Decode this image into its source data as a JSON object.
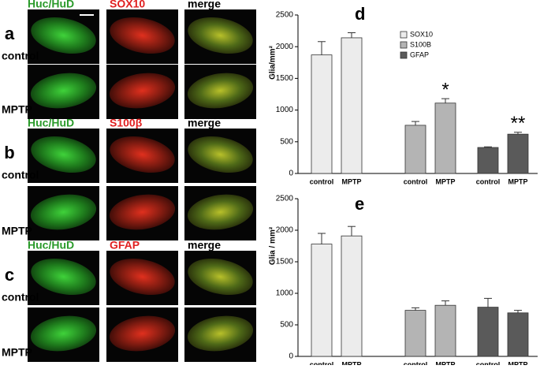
{
  "figure": {
    "rows": [
      {
        "label": "a",
        "headers": [
          "Huc/HuD",
          "SOX10",
          "merge"
        ],
        "conditions": [
          "control",
          "MPTP"
        ]
      },
      {
        "label": "b",
        "headers": [
          "Huc/HuD",
          "S100β",
          "merge"
        ],
        "conditions": [
          "control",
          "MPTP"
        ]
      },
      {
        "label": "c",
        "headers": [
          "Huc/HuD",
          "GFAP",
          "merge"
        ],
        "conditions": [
          "control",
          "MPTP"
        ]
      }
    ]
  },
  "chart_data": [
    {
      "type": "bar",
      "panel_label": "d",
      "ylabel": "Glia/mm²",
      "ylim": [
        0,
        2500
      ],
      "yticks": [
        0,
        500,
        1000,
        1500,
        2000,
        2500
      ],
      "legend": "top-center",
      "groups": [
        {
          "name": "SOX10",
          "color": "#ececec",
          "categories": [
            "control",
            "MPTP"
          ],
          "values": [
            1870,
            2140
          ],
          "errors": [
            210,
            80
          ]
        },
        {
          "name": "S100B",
          "color": "#b4b4b4",
          "categories": [
            "control",
            "MPTP"
          ],
          "values": [
            760,
            1110
          ],
          "errors": [
            60,
            70
          ],
          "significance": [
            null,
            "*"
          ]
        },
        {
          "name": "GFAP",
          "color": "#5a5a5a",
          "categories": [
            "control",
            "MPTP"
          ],
          "values": [
            410,
            620
          ],
          "errors": [
            10,
            30
          ],
          "significance": [
            null,
            "**"
          ]
        }
      ]
    },
    {
      "type": "bar",
      "panel_label": "e",
      "ylabel": "Glia / mm²",
      "ylim": [
        0,
        2500
      ],
      "yticks": [
        0,
        500,
        1000,
        1500,
        2000,
        2500
      ],
      "groups": [
        {
          "color": "#ececec",
          "categories": [
            "control",
            "MPTP"
          ],
          "values": [
            1780,
            1910
          ],
          "errors": [
            170,
            150
          ]
        },
        {
          "color": "#b4b4b4",
          "categories": [
            "control",
            "MPTP"
          ],
          "values": [
            730,
            810
          ],
          "errors": [
            40,
            70
          ]
        },
        {
          "color": "#5a5a5a",
          "categories": [
            "control",
            "MPTP"
          ],
          "values": [
            780,
            690
          ],
          "errors": [
            140,
            40
          ]
        }
      ]
    }
  ]
}
